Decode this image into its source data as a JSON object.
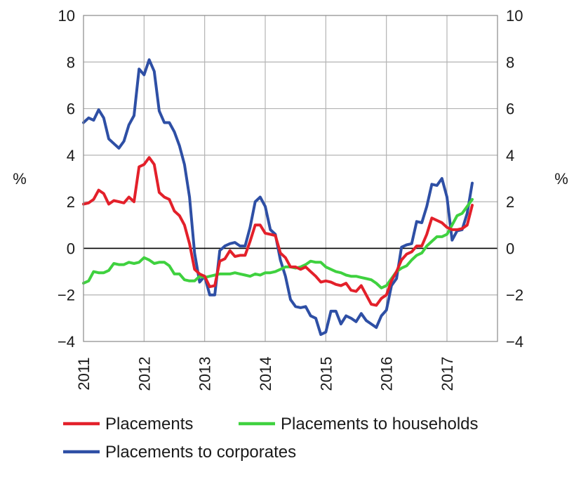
{
  "chart_data": {
    "type": "line",
    "ylabel_left": "%",
    "ylabel_right": "%",
    "ylim": [
      -4,
      10
    ],
    "yticks": [
      -4,
      -2,
      0,
      2,
      4,
      6,
      8,
      10
    ],
    "ytick_labels": [
      "−4",
      "−2",
      "0",
      "2",
      "4",
      "6",
      "8",
      "10"
    ],
    "xlim": [
      2010.583,
      2017.417
    ],
    "years": [
      "2011",
      "2012",
      "2013",
      "2014",
      "2015",
      "2016",
      "2017"
    ],
    "grid": true,
    "legend_position": "bottom",
    "colors": {
      "placements": "#e3202a",
      "households": "#3fd13f",
      "corporates": "#2e4fa5"
    },
    "series": [
      {
        "key": "corporates",
        "name": "Placements to corporates",
        "points": [
          [
            2010.583,
            5.4
          ],
          [
            2010.667,
            5.6
          ],
          [
            2010.75,
            5.5
          ],
          [
            2010.833,
            5.95
          ],
          [
            2010.917,
            5.6
          ],
          [
            2011.0,
            4.7
          ],
          [
            2011.083,
            4.5
          ],
          [
            2011.167,
            4.3
          ],
          [
            2011.25,
            4.6
          ],
          [
            2011.333,
            5.3
          ],
          [
            2011.417,
            5.7
          ],
          [
            2011.5,
            7.7
          ],
          [
            2011.583,
            7.45
          ],
          [
            2011.667,
            8.1
          ],
          [
            2011.75,
            7.6
          ],
          [
            2011.833,
            5.9
          ],
          [
            2011.917,
            5.4
          ],
          [
            2012.0,
            5.4
          ],
          [
            2012.083,
            5.0
          ],
          [
            2012.167,
            4.4
          ],
          [
            2012.25,
            3.6
          ],
          [
            2012.333,
            2.2
          ],
          [
            2012.417,
            -0.2
          ],
          [
            2012.5,
            -1.45
          ],
          [
            2012.583,
            -1.2
          ],
          [
            2012.667,
            -2.0
          ],
          [
            2012.75,
            -2.0
          ],
          [
            2012.833,
            -0.1
          ],
          [
            2012.917,
            0.1
          ],
          [
            2013.0,
            0.2
          ],
          [
            2013.083,
            0.25
          ],
          [
            2013.167,
            0.1
          ],
          [
            2013.25,
            0.1
          ],
          [
            2013.333,
            0.9
          ],
          [
            2013.417,
            2.0
          ],
          [
            2013.5,
            2.2
          ],
          [
            2013.583,
            1.8
          ],
          [
            2013.667,
            0.8
          ],
          [
            2013.75,
            0.6
          ],
          [
            2013.833,
            -0.5
          ],
          [
            2013.917,
            -1.2
          ],
          [
            2014.0,
            -2.2
          ],
          [
            2014.083,
            -2.5
          ],
          [
            2014.167,
            -2.55
          ],
          [
            2014.25,
            -2.5
          ],
          [
            2014.333,
            -2.9
          ],
          [
            2014.417,
            -3.0
          ],
          [
            2014.5,
            -3.7
          ],
          [
            2014.583,
            -3.6
          ],
          [
            2014.667,
            -2.7
          ],
          [
            2014.75,
            -2.7
          ],
          [
            2014.833,
            -3.25
          ],
          [
            2014.917,
            -2.9
          ],
          [
            2015.0,
            -3.0
          ],
          [
            2015.083,
            -3.15
          ],
          [
            2015.167,
            -2.8
          ],
          [
            2015.25,
            -3.1
          ],
          [
            2015.333,
            -3.25
          ],
          [
            2015.417,
            -3.4
          ],
          [
            2015.5,
            -2.9
          ],
          [
            2015.583,
            -2.65
          ],
          [
            2015.667,
            -1.6
          ],
          [
            2015.75,
            -1.3
          ],
          [
            2015.833,
            0.05
          ],
          [
            2015.917,
            0.15
          ],
          [
            2016.0,
            0.2
          ],
          [
            2016.083,
            1.15
          ],
          [
            2016.167,
            1.1
          ],
          [
            2016.25,
            1.8
          ],
          [
            2016.333,
            2.75
          ],
          [
            2016.417,
            2.7
          ],
          [
            2016.5,
            3.0
          ],
          [
            2016.583,
            2.2
          ],
          [
            2016.667,
            0.35
          ],
          [
            2016.75,
            0.75
          ],
          [
            2016.833,
            0.8
          ],
          [
            2016.917,
            1.5
          ],
          [
            2017.0,
            2.8
          ]
        ]
      },
      {
        "key": "households",
        "name": "Placements to households",
        "points": [
          [
            2010.583,
            -1.5
          ],
          [
            2010.667,
            -1.4
          ],
          [
            2010.75,
            -1.0
          ],
          [
            2010.833,
            -1.05
          ],
          [
            2010.917,
            -1.05
          ],
          [
            2011.0,
            -0.95
          ],
          [
            2011.083,
            -0.65
          ],
          [
            2011.167,
            -0.7
          ],
          [
            2011.25,
            -0.7
          ],
          [
            2011.333,
            -0.6
          ],
          [
            2011.417,
            -0.65
          ],
          [
            2011.5,
            -0.6
          ],
          [
            2011.583,
            -0.4
          ],
          [
            2011.667,
            -0.5
          ],
          [
            2011.75,
            -0.65
          ],
          [
            2011.833,
            -0.6
          ],
          [
            2011.917,
            -0.6
          ],
          [
            2012.0,
            -0.75
          ],
          [
            2012.083,
            -1.1
          ],
          [
            2012.167,
            -1.1
          ],
          [
            2012.25,
            -1.35
          ],
          [
            2012.333,
            -1.4
          ],
          [
            2012.417,
            -1.4
          ],
          [
            2012.5,
            -1.2
          ],
          [
            2012.583,
            -1.25
          ],
          [
            2012.667,
            -1.2
          ],
          [
            2012.75,
            -1.15
          ],
          [
            2012.833,
            -1.1
          ],
          [
            2012.917,
            -1.1
          ],
          [
            2013.0,
            -1.1
          ],
          [
            2013.083,
            -1.05
          ],
          [
            2013.167,
            -1.1
          ],
          [
            2013.25,
            -1.15
          ],
          [
            2013.333,
            -1.2
          ],
          [
            2013.417,
            -1.1
          ],
          [
            2013.5,
            -1.15
          ],
          [
            2013.583,
            -1.05
          ],
          [
            2013.667,
            -1.05
          ],
          [
            2013.75,
            -1.0
          ],
          [
            2013.833,
            -0.9
          ],
          [
            2013.917,
            -0.8
          ],
          [
            2014.0,
            -0.8
          ],
          [
            2014.083,
            -0.85
          ],
          [
            2014.167,
            -0.8
          ],
          [
            2014.25,
            -0.7
          ],
          [
            2014.333,
            -0.55
          ],
          [
            2014.417,
            -0.6
          ],
          [
            2014.5,
            -0.6
          ],
          [
            2014.583,
            -0.8
          ],
          [
            2014.667,
            -0.9
          ],
          [
            2014.75,
            -1.0
          ],
          [
            2014.833,
            -1.05
          ],
          [
            2014.917,
            -1.15
          ],
          [
            2015.0,
            -1.2
          ],
          [
            2015.083,
            -1.2
          ],
          [
            2015.167,
            -1.25
          ],
          [
            2015.25,
            -1.3
          ],
          [
            2015.333,
            -1.35
          ],
          [
            2015.417,
            -1.5
          ],
          [
            2015.5,
            -1.7
          ],
          [
            2015.583,
            -1.6
          ],
          [
            2015.667,
            -1.3
          ],
          [
            2015.75,
            -1.0
          ],
          [
            2015.833,
            -0.85
          ],
          [
            2015.917,
            -0.75
          ],
          [
            2016.0,
            -0.5
          ],
          [
            2016.083,
            -0.3
          ],
          [
            2016.167,
            -0.2
          ],
          [
            2016.25,
            0.1
          ],
          [
            2016.333,
            0.3
          ],
          [
            2016.417,
            0.5
          ],
          [
            2016.5,
            0.5
          ],
          [
            2016.583,
            0.6
          ],
          [
            2016.667,
            1.0
          ],
          [
            2016.75,
            1.4
          ],
          [
            2016.833,
            1.5
          ],
          [
            2016.917,
            1.8
          ],
          [
            2017.0,
            2.1
          ]
        ]
      },
      {
        "key": "placements",
        "name": "Placements",
        "points": [
          [
            2010.583,
            1.9
          ],
          [
            2010.667,
            1.95
          ],
          [
            2010.75,
            2.1
          ],
          [
            2010.833,
            2.5
          ],
          [
            2010.917,
            2.35
          ],
          [
            2011.0,
            1.9
          ],
          [
            2011.083,
            2.05
          ],
          [
            2011.167,
            2.0
          ],
          [
            2011.25,
            1.95
          ],
          [
            2011.333,
            2.2
          ],
          [
            2011.417,
            2.0
          ],
          [
            2011.5,
            3.5
          ],
          [
            2011.583,
            3.6
          ],
          [
            2011.667,
            3.9
          ],
          [
            2011.75,
            3.6
          ],
          [
            2011.833,
            2.4
          ],
          [
            2011.917,
            2.2
          ],
          [
            2012.0,
            2.1
          ],
          [
            2012.083,
            1.6
          ],
          [
            2012.167,
            1.4
          ],
          [
            2012.25,
            1.0
          ],
          [
            2012.333,
            0.2
          ],
          [
            2012.417,
            -0.9
          ],
          [
            2012.5,
            -1.1
          ],
          [
            2012.583,
            -1.2
          ],
          [
            2012.667,
            -1.65
          ],
          [
            2012.75,
            -1.6
          ],
          [
            2012.833,
            -0.55
          ],
          [
            2012.917,
            -0.45
          ],
          [
            2013.0,
            -0.1
          ],
          [
            2013.083,
            -0.35
          ],
          [
            2013.167,
            -0.3
          ],
          [
            2013.25,
            -0.3
          ],
          [
            2013.333,
            0.3
          ],
          [
            2013.417,
            1.0
          ],
          [
            2013.5,
            1.0
          ],
          [
            2013.583,
            0.65
          ],
          [
            2013.667,
            0.6
          ],
          [
            2013.75,
            0.55
          ],
          [
            2013.833,
            -0.2
          ],
          [
            2013.917,
            -0.4
          ],
          [
            2014.0,
            -0.8
          ],
          [
            2014.083,
            -0.8
          ],
          [
            2014.167,
            -0.9
          ],
          [
            2014.25,
            -0.8
          ],
          [
            2014.333,
            -1.0
          ],
          [
            2014.417,
            -1.2
          ],
          [
            2014.5,
            -1.45
          ],
          [
            2014.583,
            -1.4
          ],
          [
            2014.667,
            -1.45
          ],
          [
            2014.75,
            -1.55
          ],
          [
            2014.833,
            -1.6
          ],
          [
            2014.917,
            -1.5
          ],
          [
            2015.0,
            -1.8
          ],
          [
            2015.083,
            -1.85
          ],
          [
            2015.167,
            -1.6
          ],
          [
            2015.25,
            -2.0
          ],
          [
            2015.333,
            -2.4
          ],
          [
            2015.417,
            -2.45
          ],
          [
            2015.5,
            -2.15
          ],
          [
            2015.583,
            -2.0
          ],
          [
            2015.667,
            -1.4
          ],
          [
            2015.75,
            -1.0
          ],
          [
            2015.833,
            -0.5
          ],
          [
            2015.917,
            -0.25
          ],
          [
            2016.0,
            -0.15
          ],
          [
            2016.083,
            0.1
          ],
          [
            2016.167,
            0.1
          ],
          [
            2016.25,
            0.6
          ],
          [
            2016.333,
            1.3
          ],
          [
            2016.417,
            1.2
          ],
          [
            2016.5,
            1.1
          ],
          [
            2016.583,
            0.9
          ],
          [
            2016.667,
            0.8
          ],
          [
            2016.75,
            0.8
          ],
          [
            2016.833,
            0.85
          ],
          [
            2016.917,
            1.0
          ],
          [
            2017.0,
            1.85
          ]
        ]
      }
    ],
    "legend": [
      {
        "key": "placements",
        "label": "Placements"
      },
      {
        "key": "households",
        "label": "Placements to households"
      },
      {
        "key": "corporates",
        "label": "Placements to corporates"
      }
    ]
  }
}
